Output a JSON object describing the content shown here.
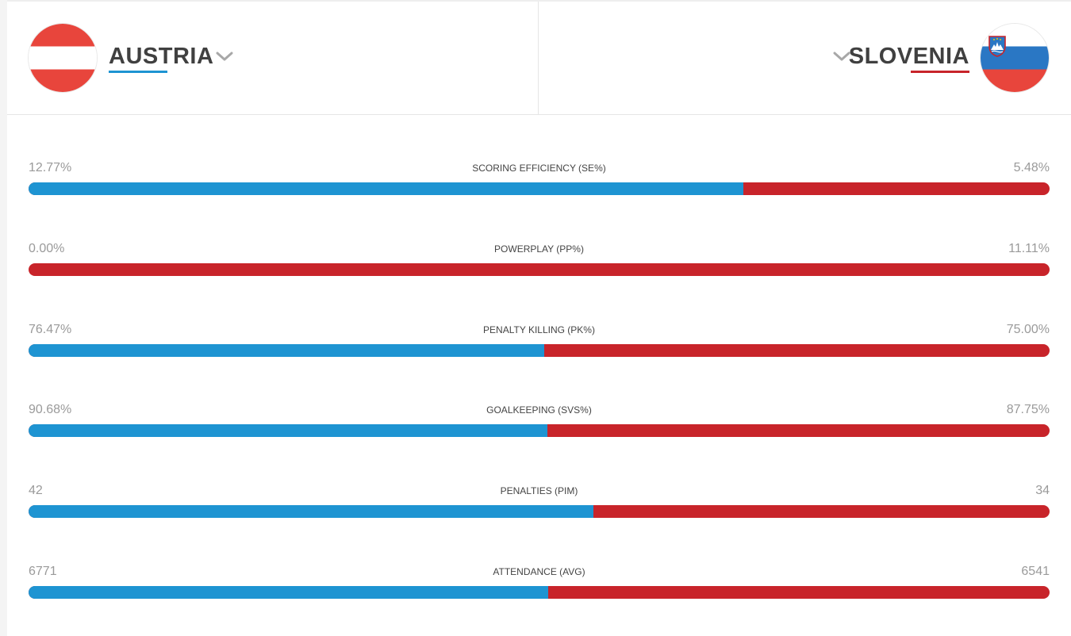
{
  "teams": {
    "home": {
      "name": "AUSTRIA",
      "flag_icon": "austria-flag-icon",
      "color": "#1e94d2"
    },
    "away": {
      "name": "SLOVENIA",
      "flag_icon": "slovenia-flag-icon",
      "color": "#c8242a"
    }
  },
  "stats": [
    {
      "label": "SCORING EFFICIENCY (SE%)",
      "home": "12.77%",
      "away": "5.48%",
      "home_share": 0.7
    },
    {
      "label": "POWERPLAY (PP%)",
      "home": "0.00%",
      "away": "11.11%",
      "home_share": 0.0
    },
    {
      "label": "PENALTY KILLING (PK%)",
      "home": "76.47%",
      "away": "75.00%",
      "home_share": 0.505
    },
    {
      "label": "GOALKEEPING (SVS%)",
      "home": "90.68%",
      "away": "87.75%",
      "home_share": 0.508
    },
    {
      "label": "PENALTIES (PIM)",
      "home": "42",
      "away": "34",
      "home_share": 0.553
    },
    {
      "label": "ATTENDANCE (AVG)",
      "home": "6771",
      "away": "6541",
      "home_share": 0.509
    }
  ]
}
